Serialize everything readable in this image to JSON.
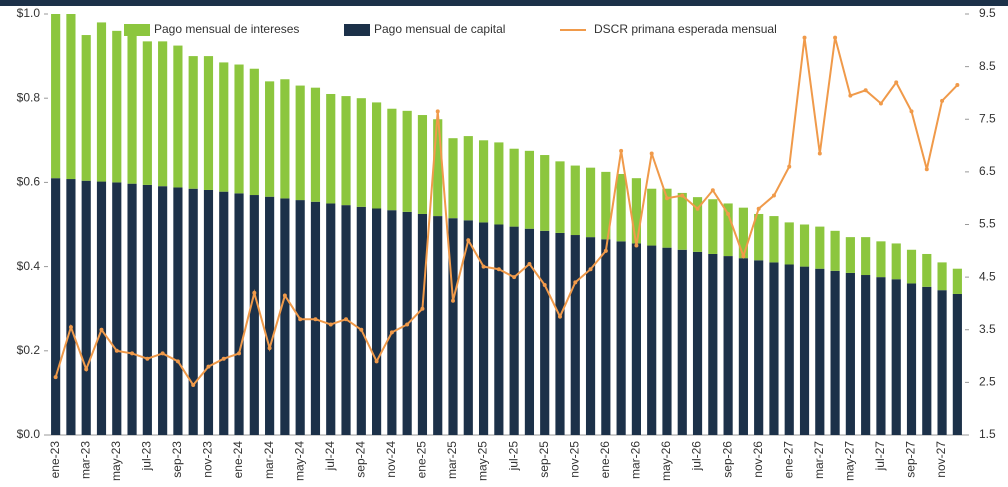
{
  "chart_data": {
    "type": "bar-line",
    "categories": [
      "ene-23",
      null,
      "mar-23",
      null,
      "may-23",
      null,
      "jul-23",
      null,
      "sep-23",
      null,
      "nov-23",
      null,
      "ene-24",
      null,
      "mar-24",
      null,
      "may-24",
      null,
      "jul-24",
      null,
      "sep-24",
      null,
      "nov-24",
      null,
      "ene-25",
      null,
      "mar-25",
      null,
      "may-25",
      null,
      "jul-25",
      null,
      "sep-25",
      null,
      "nov-25",
      null,
      "ene-26",
      null,
      "mar-26",
      null,
      "may-26",
      null,
      "jul-26",
      null,
      "sep-26",
      null,
      "nov-26",
      null,
      "ene-27",
      null,
      "mar-27",
      null,
      "may-27",
      null,
      "jul-27",
      null,
      "sep-27",
      null,
      "nov-27",
      null
    ],
    "series": [
      {
        "name": "Pago mensual de intereses",
        "color": "#8cc63e",
        "values": [
          0.39,
          0.392,
          0.346,
          0.378,
          0.36,
          0.353,
          0.341,
          0.344,
          0.337,
          0.315,
          0.318,
          0.307,
          0.306,
          0.3,
          0.274,
          0.283,
          0.272,
          0.271,
          0.26,
          0.259,
          0.258,
          0.252,
          0.241,
          0.24,
          0.235,
          0.23,
          0.19,
          0.2,
          0.195,
          0.195,
          0.185,
          0.185,
          0.18,
          0.17,
          0.165,
          0.165,
          0.16,
          0.16,
          0.155,
          0.135,
          0.14,
          0.135,
          0.13,
          0.13,
          0.125,
          0.12,
          0.11,
          0.11,
          0.1,
          0.1,
          0.1,
          0.095,
          0.085,
          0.09,
          0.085,
          0.085,
          0.08,
          0.078,
          0.066,
          0.06
        ]
      },
      {
        "name": "Pago mensual de capital",
        "color": "#1c3149",
        "values": [
          0.61,
          0.608,
          0.604,
          0.602,
          0.6,
          0.597,
          0.594,
          0.591,
          0.588,
          0.585,
          0.582,
          0.578,
          0.574,
          0.57,
          0.566,
          0.562,
          0.558,
          0.554,
          0.55,
          0.546,
          0.542,
          0.538,
          0.534,
          0.53,
          0.525,
          0.52,
          0.515,
          0.51,
          0.505,
          0.5,
          0.495,
          0.49,
          0.485,
          0.48,
          0.475,
          0.47,
          0.465,
          0.46,
          0.455,
          0.45,
          0.445,
          0.44,
          0.435,
          0.43,
          0.425,
          0.42,
          0.415,
          0.41,
          0.405,
          0.4,
          0.395,
          0.39,
          0.385,
          0.38,
          0.375,
          0.37,
          0.36,
          0.352,
          0.344,
          0.335
        ]
      },
      {
        "name": "DSCR primana esperada mensual",
        "color": "#f09a4a",
        "axis": "y2",
        "values": [
          2.6,
          3.55,
          2.75,
          3.5,
          3.1,
          3.05,
          2.95,
          3.05,
          2.9,
          2.45,
          2.8,
          2.95,
          3.05,
          4.2,
          3.15,
          4.15,
          3.7,
          3.7,
          3.6,
          3.7,
          3.5,
          2.9,
          3.45,
          3.6,
          3.9,
          7.65,
          4.05,
          5.2,
          4.7,
          4.65,
          4.5,
          4.75,
          4.35,
          3.75,
          4.4,
          4.65,
          5.0,
          6.9,
          5.1,
          6.85,
          6.0,
          6.05,
          5.8,
          6.15,
          5.7,
          4.9,
          5.8,
          6.05,
          6.6,
          9.05,
          6.85,
          9.05,
          7.95,
          8.05,
          7.8,
          8.2,
          7.65,
          6.55,
          7.85,
          8.15
        ]
      }
    ],
    "ylim": [
      0,
      1.0
    ],
    "yticks": [
      {
        "value": 0,
        "label": "$0.0"
      },
      {
        "value": 0.2,
        "label": "$0.2"
      },
      {
        "value": 0.4,
        "label": "$0.4"
      },
      {
        "value": 0.6,
        "label": "$0.6"
      },
      {
        "value": 0.8,
        "label": "$0.8"
      },
      {
        "value": 1.0,
        "label": "$1.0"
      }
    ],
    "y2lim": [
      1.5,
      9.5
    ],
    "y2ticks": [
      1.5,
      2.5,
      3.5,
      4.5,
      5.5,
      6.5,
      7.5,
      8.5,
      9.5
    ],
    "legend": "top"
  }
}
